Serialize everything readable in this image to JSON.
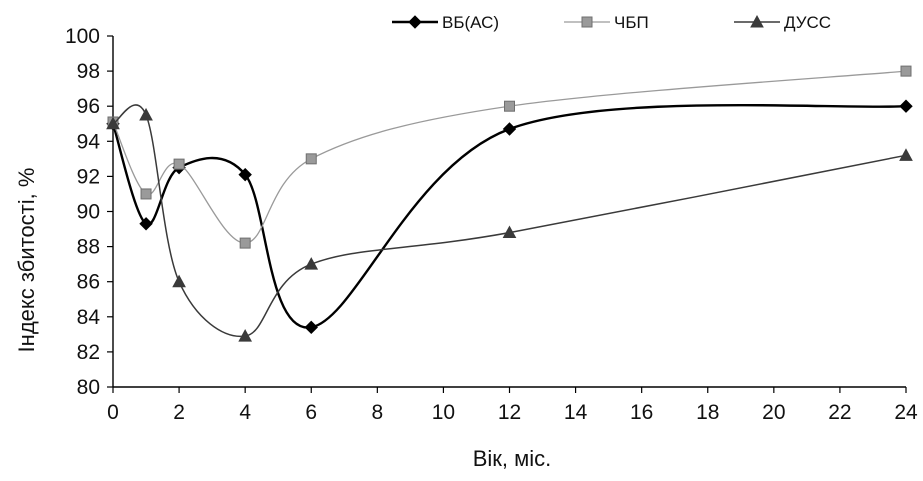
{
  "chart_data": {
    "type": "line",
    "title": "",
    "xlabel": "Вік, міс.",
    "ylabel": "Індекс збитості, %",
    "xlim": [
      0,
      24
    ],
    "ylim": [
      80,
      100
    ],
    "x_ticks": [
      "0",
      "2",
      "4",
      "6",
      "8",
      "10",
      "12",
      "14",
      "16",
      "18",
      "20",
      "22",
      "24"
    ],
    "y_ticks": [
      "80",
      "82",
      "84",
      "86",
      "88",
      "90",
      "92",
      "94",
      "96",
      "98",
      "100"
    ],
    "grid": false,
    "legend_position": "top-right",
    "smooth": true,
    "series": [
      {
        "name": "ВБ(АС)",
        "marker": "diamond",
        "color": "#000000",
        "x": [
          0,
          1,
          2,
          4,
          6,
          12,
          24
        ],
        "y": [
          95.0,
          89.3,
          92.5,
          92.1,
          83.4,
          94.7,
          96.0
        ]
      },
      {
        "name": "ЧБП",
        "marker": "square",
        "color": "#9a9a9a",
        "x": [
          0,
          1,
          2,
          4,
          6,
          12,
          24
        ],
        "y": [
          95.1,
          91.0,
          92.7,
          88.2,
          93.0,
          96.0,
          98.0
        ]
      },
      {
        "name": "ДУСС",
        "marker": "triangle",
        "color": "#3a3a3a",
        "x": [
          0,
          1,
          2,
          4,
          6,
          12,
          24
        ],
        "y": [
          95.0,
          95.5,
          86.0,
          82.9,
          87.0,
          88.8,
          93.2
        ]
      }
    ]
  }
}
